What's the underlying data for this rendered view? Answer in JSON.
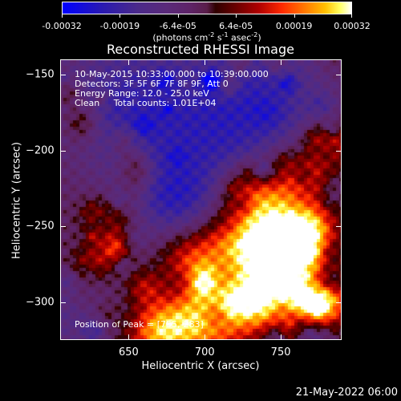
{
  "chart_data": {
    "type": "heatmap",
    "title": "Reconstructed RHESSI Image",
    "xlabel": "Heliocentric X (arcsec)",
    "ylabel": "Heliocentric Y (arcsec)",
    "xlim": [
      605,
      790
    ],
    "ylim": [
      -325,
      -140
    ],
    "x_ticks": [
      650,
      700,
      750
    ],
    "y_ticks": [
      -150,
      -200,
      -250,
      -300
    ],
    "colorbar": {
      "ticks": [
        "-0.00032",
        "-0.00019",
        "-6.4e-05",
        "6.4e-05",
        "0.00019",
        "0.00032"
      ],
      "units_prefix": "(photons cm",
      "units_parts": [
        "-2",
        " s",
        "-1",
        " asec",
        "-2",
        ")"
      ],
      "range": [
        -0.00032,
        0.00032
      ]
    },
    "annotations": [
      "10-May-2015 10:33:00.000 to 10:39:00.000",
      "Detectors: 3F 5F 6F 7F 8F 9F, Att 0",
      "Energy Range: 12.0 - 25.0 keV",
      "Clean     Total counts: 1.01E+04"
    ],
    "peak_label": "Position of Peak = [755,-283]",
    "peak_position": [
      755,
      -283
    ],
    "grid": false
  },
  "footer": {
    "date": "21-May-2022 06:00"
  }
}
